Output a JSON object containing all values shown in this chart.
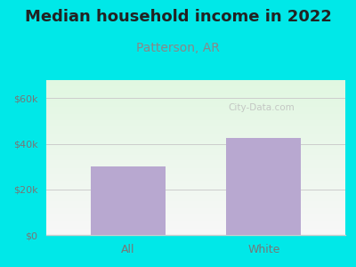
{
  "title": "Median household income in 2022",
  "subtitle": "Patterson, AR",
  "categories": [
    "All",
    "White"
  ],
  "values": [
    30000,
    42500
  ],
  "bar_color": "#b8a8d0",
  "background_color": "#00e8e8",
  "title_fontsize": 13,
  "subtitle_fontsize": 10,
  "subtitle_color": "#888888",
  "title_color": "#222222",
  "tick_color": "#777777",
  "yticks": [
    0,
    20000,
    40000,
    60000
  ],
  "ytick_labels": [
    "$0",
    "$20k",
    "$40k",
    "$60k"
  ],
  "ylim": [
    0,
    68000
  ],
  "watermark": "City-Data.com",
  "watermark_color": "#bbbbbb",
  "plot_bg_color_topleft": [
    0.88,
    0.97,
    0.88
  ],
  "plot_bg_color_bottomright": [
    0.97,
    0.97,
    0.97
  ],
  "grid_color": "#cccccc"
}
